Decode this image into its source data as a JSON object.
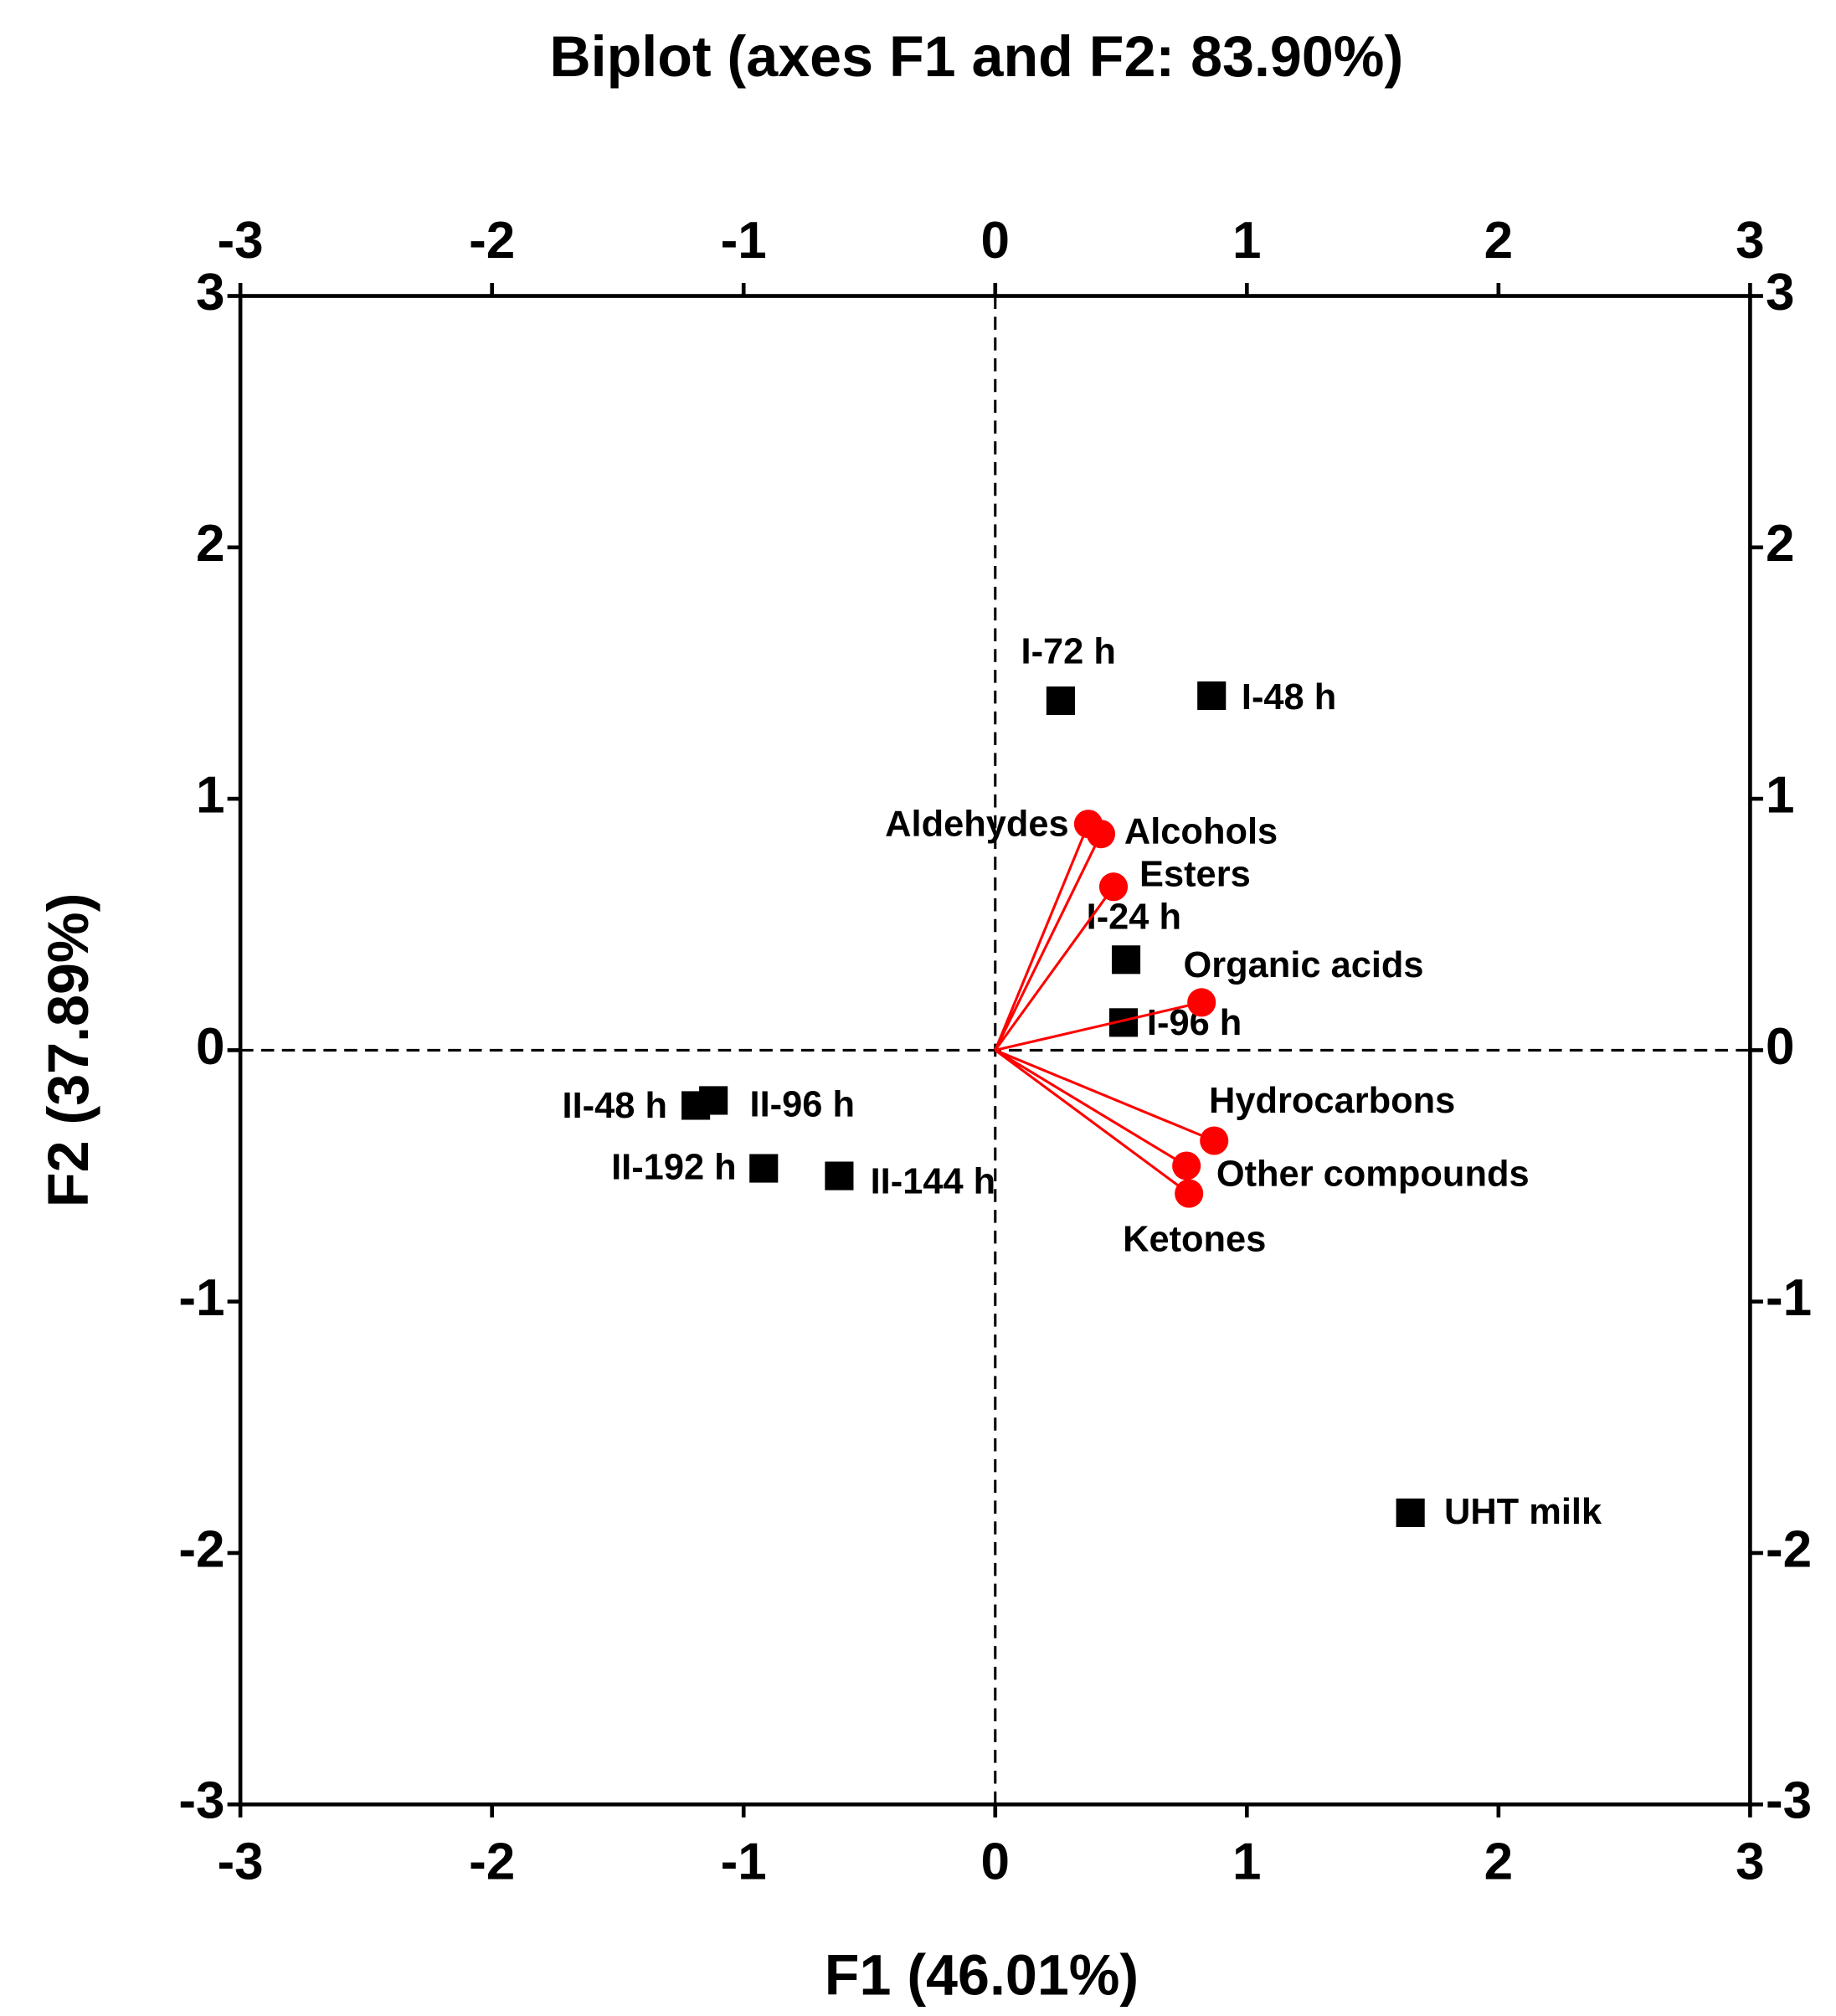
{
  "chart_data": {
    "type": "scatter",
    "title": "Biplot (axes F1 and F2: 83.90%)",
    "xlabel": "F1 (46.01%)",
    "ylabel": "F2 (37.89%)",
    "xlim": [
      -3,
      3
    ],
    "ylim": [
      -3,
      3
    ],
    "xticks": [
      -3,
      -2,
      -1,
      0,
      1,
      2,
      3
    ],
    "yticks": [
      -3,
      -2,
      -1,
      0,
      1,
      2,
      3
    ],
    "series": [
      {
        "color": "#000000",
        "marker": "square",
        "labels": [
          "I-72 h",
          "I-48 h",
          "I-24 h",
          "I-96 h",
          "II-48 h",
          "II-96 h",
          "II-192 h",
          "II-144 h",
          "UHT milk"
        ],
        "x": [
          0.26,
          0.86,
          0.52,
          0.51,
          -1.19,
          -1.12,
          -0.92,
          -0.62,
          1.65
        ],
        "y": [
          1.39,
          1.41,
          0.36,
          0.11,
          -0.22,
          -0.2,
          -0.47,
          -0.5,
          -1.84
        ]
      },
      {
        "color": "#ff0000",
        "marker": "circle",
        "vectors": true,
        "labels": [
          "Aldehydes",
          "Alcohols",
          "Esters",
          "Organic acids",
          "Hydrocarbons",
          "Other compounds",
          "Ketones"
        ],
        "x": [
          0.37,
          0.42,
          0.47,
          0.82,
          0.87,
          0.76,
          0.77
        ],
        "y": [
          0.9,
          0.86,
          0.65,
          0.19,
          -0.36,
          -0.46,
          -0.57
        ]
      }
    ]
  }
}
